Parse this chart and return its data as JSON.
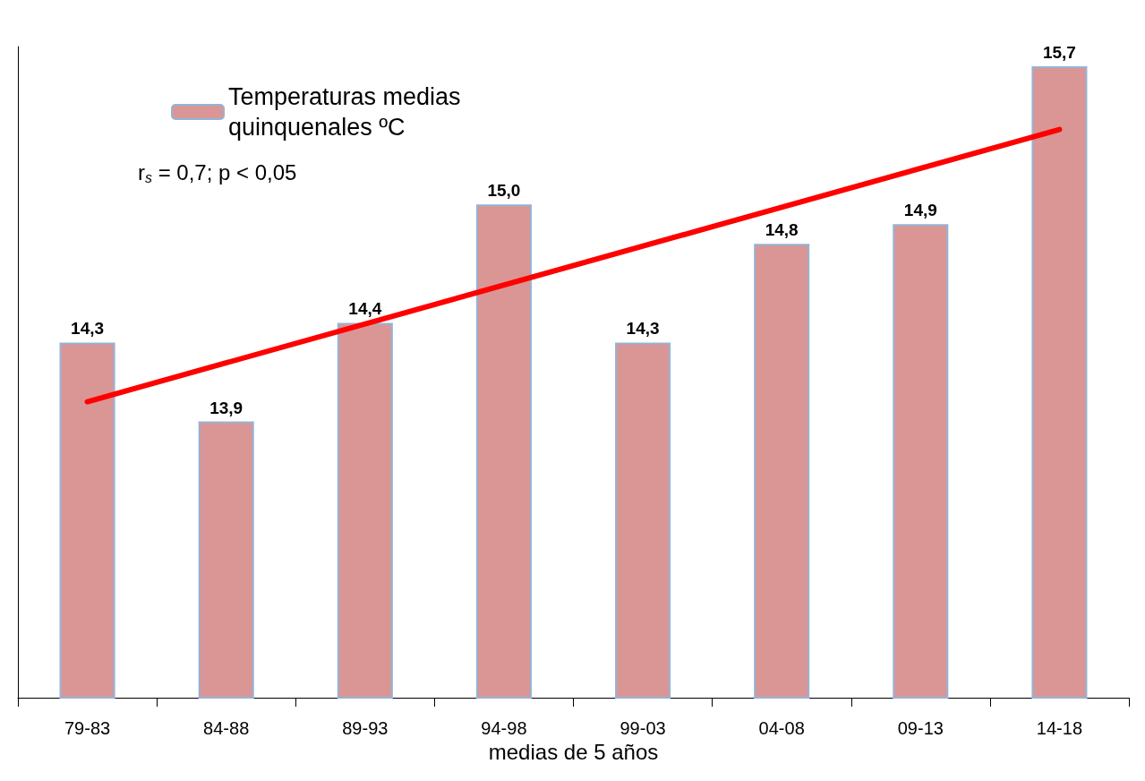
{
  "chart_data": {
    "type": "bar",
    "xlabel": "medias de 5 años",
    "categories": [
      "79-83",
      "84-88",
      "89-93",
      "94-98",
      "99-03",
      "04-08",
      "09-13",
      "14-18"
    ],
    "ylim": [
      12.5,
      15.8
    ],
    "tick_labels": "x",
    "grid": false,
    "legend": "top left",
    "series": [
      {
        "name": "Temperaturas medias quinquenales ºC",
        "color": "#d99694",
        "values": [
          14.3,
          13.9,
          14.4,
          15.0,
          14.3,
          14.8,
          14.9,
          15.7
        ],
        "value_labels": [
          "14,3",
          "13,9",
          "14,4",
          "15,0",
          "14,3",
          "14,8",
          "14,9",
          "15,7"
        ]
      },
      {
        "type": "line",
        "color": "#ff0000",
        "x": [
          "79-83",
          "14-18"
        ],
        "values": [
          14.0,
          15.38
        ],
        "marker": "none"
      }
    ],
    "annotations": [
      "r$_{s}$ = 0,7; p < 0,05"
    ]
  }
}
